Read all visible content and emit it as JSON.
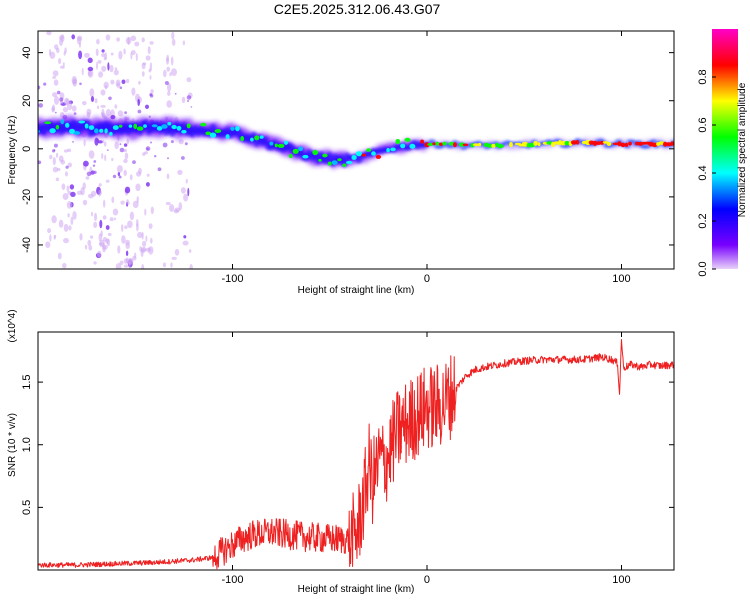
{
  "figure_title": "C2E5.2025.312.06.43.G07",
  "colors": {
    "snr_line": "#ee2020",
    "axis": "#000000"
  },
  "chart_data": [
    {
      "type": "heatmap",
      "title": "C2E5.2025.312.06.43.G07",
      "xlabel": "Height of straight line (km)",
      "ylabel": "Frequency (Hz)",
      "xlim": [
        -200,
        127
      ],
      "ylim": [
        -50,
        49
      ],
      "xticks": [
        -100,
        0,
        100
      ],
      "yticks": [
        -40,
        -20,
        0,
        20,
        40
      ],
      "colorbar": {
        "label": "Normalized spectral amplitude",
        "range": [
          0,
          1
        ],
        "ticks": [
          "0.0",
          "0.2",
          "0.4",
          "0.6",
          "0.8"
        ],
        "tick_values": [
          0,
          0.2,
          0.4,
          0.6,
          0.8
        ],
        "colormap": [
          "#e8d2f8",
          "#7800ff",
          "#0000ff",
          "#00ffff",
          "#00ff00",
          "#ffff00",
          "#ff0000",
          "#ff00c8"
        ]
      },
      "ridge": {
        "description": "dominant frequency ridge versus height",
        "x": [
          -200,
          -180,
          -160,
          -140,
          -120,
          -100,
          -80,
          -60,
          -45,
          -35,
          -20,
          -5,
          5,
          20,
          40,
          60,
          80,
          90,
          100,
          110,
          127
        ],
        "y": [
          9,
          9,
          8,
          9,
          8,
          7,
          2,
          -3,
          -5,
          -4,
          0,
          2,
          2,
          1.5,
          1.5,
          2,
          2.5,
          2.5,
          2,
          2,
          2
        ]
      }
    },
    {
      "type": "line",
      "xlabel": "Height of straight line (km)",
      "ylabel": "SNR (10 * v/v)",
      "y_multiplier": "(x10^4)",
      "xlim": [
        -200,
        127
      ],
      "ylim": [
        0,
        1.9
      ],
      "xticks": [
        -100,
        0,
        100
      ],
      "yticks": [
        0.5,
        1.0,
        1.5
      ],
      "series": [
        {
          "name": "SNR",
          "x": [
            -200,
            -180,
            -160,
            -140,
            -120,
            -110,
            -105,
            -100,
            -95,
            -90,
            -80,
            -70,
            -60,
            -50,
            -40,
            -36,
            -34,
            -32,
            -30,
            -28,
            -26,
            -24,
            -22,
            -20,
            -18,
            -15,
            -12,
            -8,
            -4,
            0,
            5,
            10,
            15,
            20,
            25,
            30,
            40,
            50,
            60,
            70,
            80,
            90,
            95,
            98,
            99,
            100,
            101,
            102,
            105,
            110,
            115,
            120,
            127
          ],
          "y": [
            0.04,
            0.04,
            0.05,
            0.06,
            0.08,
            0.1,
            0.15,
            0.2,
            0.25,
            0.28,
            0.3,
            0.28,
            0.26,
            0.25,
            0.24,
            0.3,
            0.45,
            0.6,
            0.85,
            0.7,
            0.8,
            0.9,
            0.85,
            0.9,
            1.0,
            1.1,
            1.15,
            1.2,
            1.25,
            1.3,
            1.3,
            1.35,
            1.45,
            1.55,
            1.6,
            1.62,
            1.65,
            1.67,
            1.68,
            1.68,
            1.68,
            1.7,
            1.68,
            1.65,
            1.4,
            1.85,
            1.62,
            1.62,
            1.64,
            1.62,
            1.64,
            1.63,
            1.64
          ]
        }
      ]
    }
  ]
}
